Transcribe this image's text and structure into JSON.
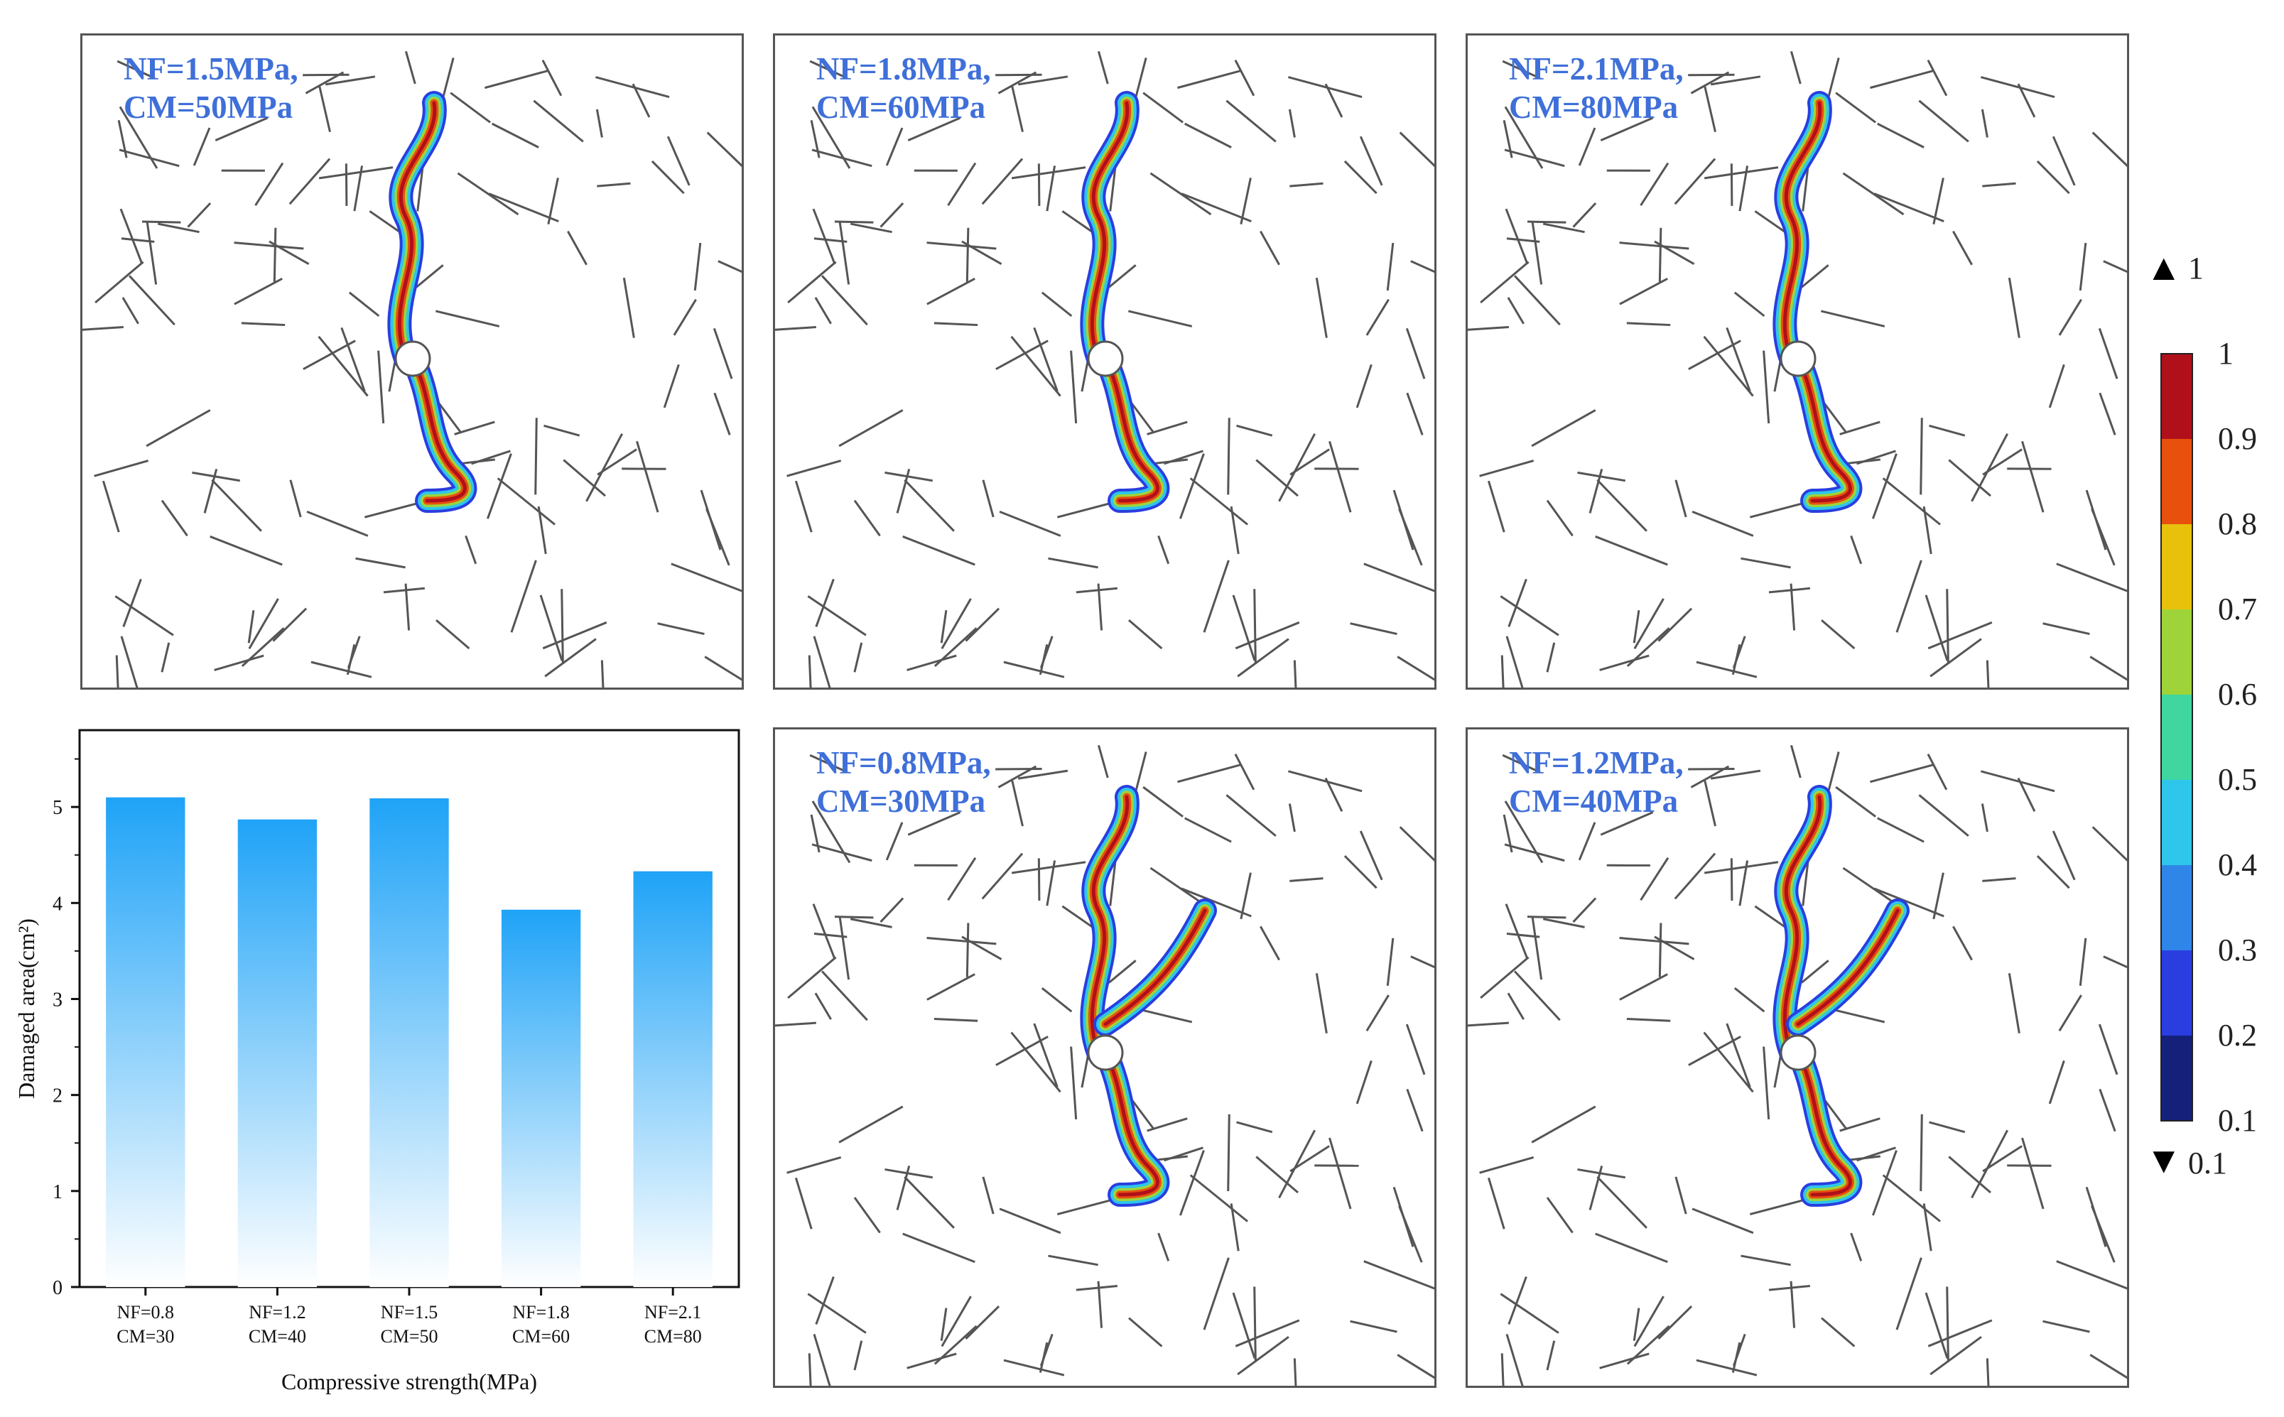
{
  "panels": [
    {
      "id": "p1",
      "label_line1": "NF=1.5MPa,",
      "label_line2": "CM=50MPa",
      "variant": 1
    },
    {
      "id": "p2",
      "label_line1": "NF=1.8MPa,",
      "label_line2": "CM=60MPa",
      "variant": 2
    },
    {
      "id": "p3",
      "label_line1": "NF=2.1MPa,",
      "label_line2": "CM=80MPa",
      "variant": 3
    },
    {
      "id": "p4",
      "label_line1": "NF=0.8MPa,",
      "label_line2": "CM=30MPa",
      "variant": 4
    },
    {
      "id": "p5",
      "label_line1": "NF=1.2MPa,",
      "label_line2": "CM=40MPa",
      "variant": 5
    }
  ],
  "colorbar": {
    "max_marker": "1",
    "min_marker": "0.1",
    "ticks": [
      "1",
      "0.9",
      "0.8",
      "0.7",
      "0.6",
      "0.5",
      "0.4",
      "0.3",
      "0.2",
      "0.1"
    ],
    "colors": [
      "#b0101a",
      "#e8500e",
      "#e8c10c",
      "#9ed43a",
      "#40d6a0",
      "#2ec6ea",
      "#2f86e8",
      "#2a3ee0",
      "#14207a"
    ]
  },
  "chart_data": {
    "type": "bar",
    "categories": [
      [
        "NF=0.8",
        "CM=30"
      ],
      [
        "NF=1.2",
        "CM=40"
      ],
      [
        "NF=1.5",
        "CM=50"
      ],
      [
        "NF=1.8",
        "CM=60"
      ],
      [
        "NF=2.1",
        "CM=80"
      ]
    ],
    "values": [
      5.1,
      4.87,
      5.09,
      3.93,
      4.33
    ],
    "xlabel": "Compressive strength(MPa)",
    "ylabel": "Damaged area(cm²)",
    "ylim": [
      0,
      5.8
    ],
    "yticks": [
      "0",
      "1",
      "2",
      "3",
      "4",
      "5"
    ],
    "bar_color_top": "#1fa3f7",
    "bar_color_bottom": "#ffffff"
  }
}
